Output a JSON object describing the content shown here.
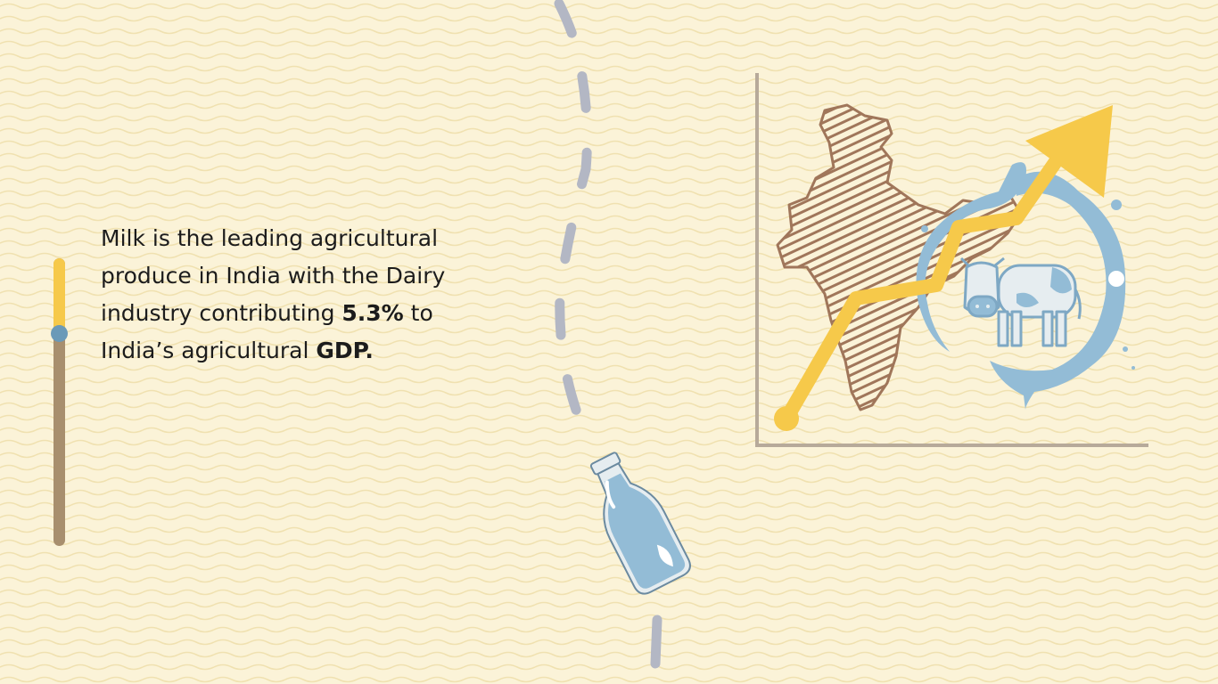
{
  "slide": {
    "text_part1": "Milk is the leading agricultural produce in India with the Dairy industry contributing ",
    "highlight_percent": "5.3%",
    "text_part2": " to India’s agricultural ",
    "highlight_gdp": "GDP."
  },
  "progress": {
    "fraction": 0.26,
    "colors": {
      "fill": "#f6c94a",
      "track": "#a88f6e",
      "knob": "#6b9ab8"
    }
  },
  "icons": {
    "bottle": "milk-bottle-icon",
    "map": "india-map-icon",
    "cow": "cow-icon",
    "arrow": "growth-arrow-icon"
  },
  "colors": {
    "background": "#fbf3d8",
    "dash": "#b3b7c4",
    "milk": "#93bcd6",
    "map": "#a0765a",
    "arrow": "#f6c94a",
    "axes": "#b7aa9a"
  }
}
